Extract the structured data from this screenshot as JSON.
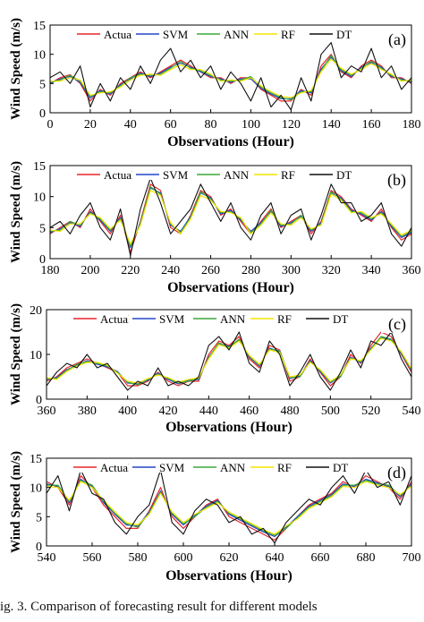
{
  "caption": "ig. 3. Comparison of forecasting result for different models",
  "colors": {
    "Actual": "#e8262a",
    "SVM": "#2347c8",
    "ANN": "#3aa83a",
    "RF": "#f2e600",
    "DT": "#111111"
  },
  "chart_data": [
    {
      "type": "line",
      "panel": "(a)",
      "xlabel": "Observations (Hour)",
      "ylabel": "Wind Speed (m/s)",
      "xlim": [
        0,
        180
      ],
      "ylim": [
        0,
        15
      ],
      "xticks": [
        0,
        20,
        40,
        60,
        80,
        100,
        120,
        140,
        160,
        180
      ],
      "yticks": [
        0,
        5,
        10,
        15
      ],
      "legend": [
        "Actual",
        "SVM",
        "ANN",
        "RF",
        "DT"
      ],
      "x": [
        0,
        5,
        10,
        15,
        20,
        25,
        30,
        35,
        40,
        45,
        50,
        55,
        60,
        65,
        70,
        75,
        80,
        85,
        90,
        95,
        100,
        105,
        110,
        115,
        120,
        125,
        130,
        135,
        140,
        145,
        150,
        155,
        160,
        165,
        170,
        175,
        180
      ],
      "series": [
        {
          "name": "Actual",
          "values": [
            5,
            6,
            6.5,
            5,
            2,
            4,
            3,
            5,
            6,
            7,
            6,
            7,
            8,
            9,
            8,
            7,
            6,
            6,
            5,
            6,
            6,
            4,
            3,
            2,
            2,
            4,
            3,
            8,
            10,
            7,
            6,
            8,
            9,
            8,
            6,
            6,
            5
          ]
        },
        {
          "name": "SVM",
          "values": [
            5,
            5.8,
            6.2,
            5.2,
            2.5,
            3.8,
            3.2,
            4.8,
            5.8,
            6.8,
            6.2,
            6.8,
            7.8,
            8.5,
            7.8,
            7,
            6.2,
            5.8,
            5.2,
            5.8,
            5.8,
            4.2,
            3.2,
            2.4,
            2.4,
            3.8,
            3.4,
            7.5,
            9.5,
            7.2,
            6.2,
            7.8,
            8.6,
            7.8,
            6.2,
            5.8,
            5.2
          ]
        },
        {
          "name": "ANN",
          "values": [
            5.2,
            5.6,
            6.4,
            5.4,
            2.8,
            3.6,
            3.4,
            4.6,
            6,
            6.6,
            6.4,
            6.6,
            7.6,
            8.8,
            7.6,
            7.2,
            6.4,
            5.6,
            5.4,
            5.6,
            6.2,
            4.4,
            3.4,
            2.6,
            2.2,
            3.6,
            3.6,
            7.2,
            9.8,
            7.4,
            6.4,
            7.6,
            8.8,
            7.6,
            6.4,
            5.6,
            5.4
          ]
        },
        {
          "name": "RF",
          "values": [
            5.4,
            5.4,
            6,
            5.6,
            3,
            3.4,
            3.6,
            4.4,
            5.6,
            6.4,
            6.6,
            6.4,
            7.4,
            8.2,
            7.4,
            7.4,
            6.6,
            5.4,
            5.6,
            5.4,
            6,
            4.6,
            3.6,
            2.8,
            2.6,
            3.4,
            3.8,
            7,
            9.2,
            7.6,
            6.6,
            7.4,
            8.4,
            7.4,
            6.6,
            5.4,
            5.6
          ]
        },
        {
          "name": "DT",
          "values": [
            6,
            7,
            5,
            8,
            1,
            5,
            2,
            6,
            4,
            8,
            5,
            9,
            11,
            7,
            9,
            6,
            8,
            4,
            7,
            5,
            2,
            6,
            1,
            3,
            0.5,
            6,
            2,
            10,
            12,
            6,
            8,
            7,
            11,
            6,
            8,
            4,
            6
          ]
        }
      ]
    },
    {
      "type": "line",
      "panel": "(b)",
      "xlabel": "Observations (Hour)",
      "ylabel": "Wind Speed (m/s)",
      "xlim": [
        180,
        360
      ],
      "ylim": [
        0,
        15
      ],
      "xticks": [
        180,
        200,
        220,
        240,
        260,
        280,
        300,
        320,
        340,
        360
      ],
      "yticks": [
        0,
        5,
        10,
        15
      ],
      "legend": [
        "Actual",
        "SVM",
        "ANN",
        "RF",
        "DT"
      ],
      "x": [
        180,
        185,
        190,
        195,
        200,
        205,
        210,
        215,
        220,
        225,
        230,
        235,
        240,
        245,
        250,
        255,
        260,
        265,
        270,
        275,
        280,
        285,
        290,
        295,
        300,
        305,
        310,
        315,
        320,
        325,
        330,
        335,
        340,
        345,
        350,
        355,
        360
      ],
      "series": [
        {
          "name": "Actual",
          "values": [
            4,
            5,
            6,
            5,
            8,
            6,
            4,
            7,
            1,
            6,
            12,
            11,
            5,
            4,
            7,
            11,
            10,
            7,
            8,
            6,
            4,
            6,
            8,
            5,
            6,
            7,
            4,
            6,
            11,
            10,
            8,
            7,
            6,
            8,
            5,
            3,
            4
          ]
        },
        {
          "name": "SVM",
          "values": [
            4.2,
            4.8,
            5.8,
            5.2,
            7.6,
            6.2,
            4.4,
            6.6,
            1.8,
            5.8,
            11.4,
            10.6,
            5.4,
            4.4,
            6.8,
            10.6,
            9.8,
            7.2,
            7.8,
            6.2,
            4.4,
            5.8,
            7.6,
            5.2,
            5.8,
            6.8,
            4.4,
            5.8,
            10.6,
            9.8,
            7.8,
            7.2,
            6.2,
            7.6,
            5.2,
            3.4,
            4.2
          ]
        },
        {
          "name": "ANN",
          "values": [
            4.4,
            4.6,
            6,
            5.4,
            7.4,
            6.4,
            4.6,
            6.4,
            2,
            5.6,
            11.6,
            10.4,
            5.6,
            4.2,
            6.6,
            10.8,
            9.6,
            7.4,
            7.6,
            6.4,
            4.2,
            5.6,
            7.8,
            5.4,
            5.6,
            7,
            4.6,
            5.6,
            10.8,
            9.6,
            7.6,
            7.4,
            6.4,
            7.4,
            5.4,
            3.6,
            4.4
          ]
        },
        {
          "name": "RF",
          "values": [
            4.6,
            4.4,
            5.6,
            5.6,
            7.2,
            6.6,
            4.8,
            6.2,
            2.4,
            5.4,
            11,
            10.2,
            5.8,
            4,
            6.4,
            10.2,
            9.4,
            7.6,
            7.4,
            6.6,
            4,
            5.4,
            7.4,
            5.6,
            5.4,
            6.6,
            4.8,
            5.4,
            10.4,
            9.4,
            7.4,
            7.6,
            6.6,
            7.2,
            5.6,
            3.8,
            4.6
          ]
        },
        {
          "name": "DT",
          "values": [
            5,
            6,
            4,
            7,
            9,
            5,
            3,
            8,
            0.5,
            8,
            13,
            9,
            4,
            6,
            8,
            12,
            9,
            6,
            9,
            5,
            3,
            7,
            9,
            4,
            7,
            8,
            3,
            7,
            12,
            9,
            9,
            6,
            7,
            9,
            4,
            2,
            5
          ]
        }
      ]
    },
    {
      "type": "line",
      "panel": "(c)",
      "xlabel": "Observations (Hour)",
      "ylabel": "Wind Speed (m/s)",
      "xlim": [
        360,
        540
      ],
      "ylim": [
        0,
        20
      ],
      "xticks": [
        360,
        380,
        400,
        420,
        440,
        460,
        480,
        500,
        520,
        540
      ],
      "yticks": [
        0,
        10,
        20
      ],
      "legend": [
        "Actual",
        "SVM",
        "ANN",
        "RF",
        "DT"
      ],
      "x": [
        360,
        365,
        370,
        375,
        380,
        385,
        390,
        395,
        400,
        405,
        410,
        415,
        420,
        425,
        430,
        435,
        440,
        445,
        450,
        455,
        460,
        465,
        470,
        475,
        480,
        485,
        490,
        495,
        500,
        505,
        510,
        515,
        520,
        525,
        530,
        535,
        540
      ],
      "series": [
        {
          "name": "Actual",
          "values": [
            4,
            5,
            7,
            8,
            9,
            8,
            7,
            6,
            3,
            3,
            4,
            6,
            4,
            3,
            4,
            4,
            10,
            13,
            12,
            14,
            9,
            7,
            12,
            11,
            4,
            5,
            9,
            6,
            3,
            5,
            10,
            8,
            12,
            15,
            14,
            10,
            6
          ]
        },
        {
          "name": "SVM",
          "values": [
            4.4,
            4.8,
            6.6,
            7.6,
            8.6,
            7.8,
            7.2,
            6.2,
            3.6,
            3.4,
            4.2,
            5.8,
            4.4,
            3.4,
            4.2,
            4.4,
            9.4,
            12.4,
            11.8,
            13.2,
            9.4,
            7.4,
            11.4,
            10.6,
            4.6,
            5.2,
            8.6,
            6.2,
            3.6,
            5.2,
            9.4,
            8.2,
            11.4,
            13.8,
            13.2,
            10.2,
            6.4
          ]
        },
        {
          "name": "ANN",
          "values": [
            4.6,
            4.6,
            6.4,
            7.8,
            8.4,
            8,
            7.4,
            6,
            3.8,
            3.2,
            4.4,
            5.6,
            4.6,
            3.6,
            4,
            4.6,
            9.2,
            12.6,
            11.6,
            13.4,
            9.6,
            7.6,
            11.2,
            10.8,
            4.8,
            5,
            8.4,
            6.4,
            3.8,
            5,
            9.2,
            8.4,
            11.2,
            14,
            13.4,
            10.4,
            6.6
          ]
        },
        {
          "name": "RF",
          "values": [
            4.8,
            4.4,
            6.2,
            7.4,
            8.2,
            8.2,
            7.6,
            5.8,
            4,
            3.6,
            4.6,
            5.4,
            4.8,
            3.8,
            4.4,
            4.8,
            9,
            12.2,
            11.4,
            13,
            9.8,
            7.8,
            11,
            10.4,
            5,
            5.4,
            8.2,
            6.6,
            4,
            5.4,
            9,
            8.6,
            11,
            13.6,
            13,
            10.6,
            6.8
          ]
        },
        {
          "name": "DT",
          "values": [
            3,
            6,
            8,
            7,
            10,
            7,
            8,
            5,
            2,
            4,
            3,
            7,
            3,
            4,
            3,
            5,
            12,
            14,
            11,
            15,
            8,
            6,
            13,
            10,
            3,
            6,
            10,
            5,
            2,
            6,
            11,
            7,
            13,
            12,
            15,
            9,
            5
          ]
        }
      ]
    },
    {
      "type": "line",
      "panel": "(d)",
      "xlabel": "Observations (Hour)",
      "ylabel": "Wind Speed (m/s)",
      "xlim": [
        540,
        700
      ],
      "ylim": [
        0,
        15
      ],
      "xticks": [
        540,
        560,
        580,
        600,
        620,
        640,
        660,
        680,
        700
      ],
      "yticks": [
        0,
        5,
        10,
        15
      ],
      "legend": [
        "Actual",
        "SVM",
        "ANN",
        "RF",
        "DT"
      ],
      "x": [
        540,
        545,
        550,
        555,
        560,
        565,
        570,
        575,
        580,
        585,
        590,
        595,
        600,
        605,
        610,
        615,
        620,
        625,
        630,
        635,
        640,
        645,
        650,
        655,
        660,
        665,
        670,
        675,
        680,
        685,
        690,
        695,
        700
      ],
      "series": [
        {
          "name": "Actual",
          "values": [
            11,
            10,
            7,
            12,
            10,
            7,
            5,
            3,
            3,
            6,
            10,
            5,
            3,
            5,
            7,
            8,
            5,
            4,
            3,
            2,
            1,
            3,
            5,
            7,
            8,
            9,
            11,
            10,
            12,
            11,
            10,
            8,
            11
          ]
        },
        {
          "name": "SVM",
          "values": [
            10.6,
            10.2,
            7.4,
            11.4,
            10.2,
            7.4,
            5.4,
            3.6,
            3.4,
            5.8,
            9.4,
            5.4,
            3.6,
            5.2,
            6.8,
            7.8,
            5.4,
            4.4,
            3.4,
            2.4,
            1.6,
            3.2,
            5,
            6.8,
            7.8,
            8.8,
            10.6,
            10.2,
            11.4,
            10.8,
            10.2,
            8.4,
            10.6
          ]
        },
        {
          "name": "ANN",
          "values": [
            10.4,
            10.4,
            7.6,
            11.2,
            10.4,
            7.6,
            5.6,
            3.8,
            3.2,
            5.6,
            9.2,
            5.6,
            3.8,
            5,
            6.6,
            7.6,
            5.6,
            4.6,
            3.6,
            2.6,
            1.8,
            3,
            4.8,
            6.6,
            7.6,
            8.6,
            10.4,
            10.4,
            11.2,
            10.6,
            10.4,
            8.6,
            10.4
          ]
        },
        {
          "name": "RF",
          "values": [
            10.2,
            10,
            7.8,
            11,
            10,
            7.8,
            5.8,
            4,
            3.6,
            5.4,
            9,
            5.8,
            4,
            5.4,
            6.4,
            7.4,
            5.8,
            4.8,
            3.8,
            2.8,
            2,
            3.4,
            4.6,
            6.4,
            7.4,
            8.4,
            10.2,
            10,
            11,
            10.4,
            10,
            8.8,
            10.2
          ]
        },
        {
          "name": "DT",
          "values": [
            9,
            12,
            6,
            13,
            9,
            8,
            4,
            2,
            5,
            7,
            13,
            4,
            2,
            6,
            8,
            7,
            4,
            5,
            2,
            3,
            0.5,
            4,
            6,
            8,
            7,
            10,
            12,
            9,
            13,
            10,
            11,
            7,
            12
          ]
        }
      ]
    }
  ]
}
